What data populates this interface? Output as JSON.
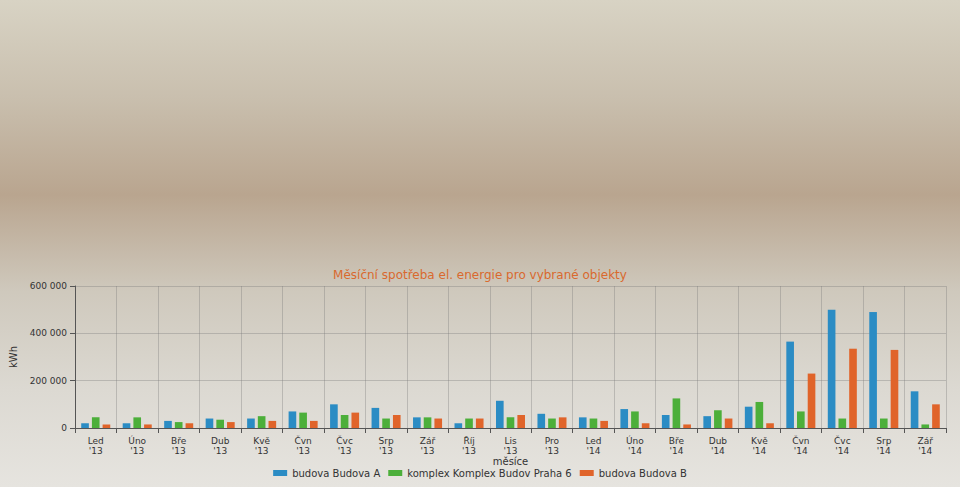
{
  "chart_data": {
    "type": "bar",
    "title": "Měsíční spotřeba el. energie pro vybrané objekty",
    "x_label": "měsíce",
    "y_label": "kWh",
    "categories": [
      "Led '13",
      "Úno '13",
      "Bře '13",
      "Dub '13",
      "Kvě '13",
      "Čvn '13",
      "Čvc '13",
      "Srp '13",
      "Zář '13",
      "Říj '13",
      "Lis '13",
      "Pro '13",
      "Led '14",
      "Úno '14",
      "Bře '14",
      "Dub '14",
      "Kvě '14",
      "Čvn '14",
      "Čvc '14",
      "Srp '14",
      "Zář '14"
    ],
    "series": [
      {
        "name": "budova Budova A",
        "color": "#2b8cc4",
        "values": [
          20000,
          20000,
          30000,
          40000,
          40000,
          70000,
          100000,
          85000,
          45000,
          20000,
          115000,
          60000,
          45000,
          80000,
          55000,
          50000,
          90000,
          365000,
          500000,
          490000,
          155000
        ]
      },
      {
        "name": "komplex Komplex Budov Praha 6",
        "color": "#4caf3a",
        "values": [
          45000,
          45000,
          25000,
          35000,
          50000,
          65000,
          55000,
          40000,
          45000,
          40000,
          45000,
          40000,
          40000,
          70000,
          125000,
          75000,
          110000,
          70000,
          40000,
          40000,
          15000
        ]
      },
      {
        "name": "budova Budova B",
        "color": "#e0642a",
        "values": [
          15000,
          15000,
          20000,
          25000,
          30000,
          30000,
          65000,
          55000,
          40000,
          40000,
          55000,
          45000,
          30000,
          20000,
          15000,
          40000,
          20000,
          230000,
          335000,
          330000,
          100000
        ]
      }
    ],
    "ylim": [
      0,
      600000
    ],
    "yticks": [
      0,
      {
        "value": 200000,
        "label": "200 000"
      },
      {
        "value": 400000,
        "label": "400 000"
      },
      {
        "value": 600000,
        "label": "600 000"
      }
    ],
    "grid": true,
    "legend": "bottom"
  }
}
